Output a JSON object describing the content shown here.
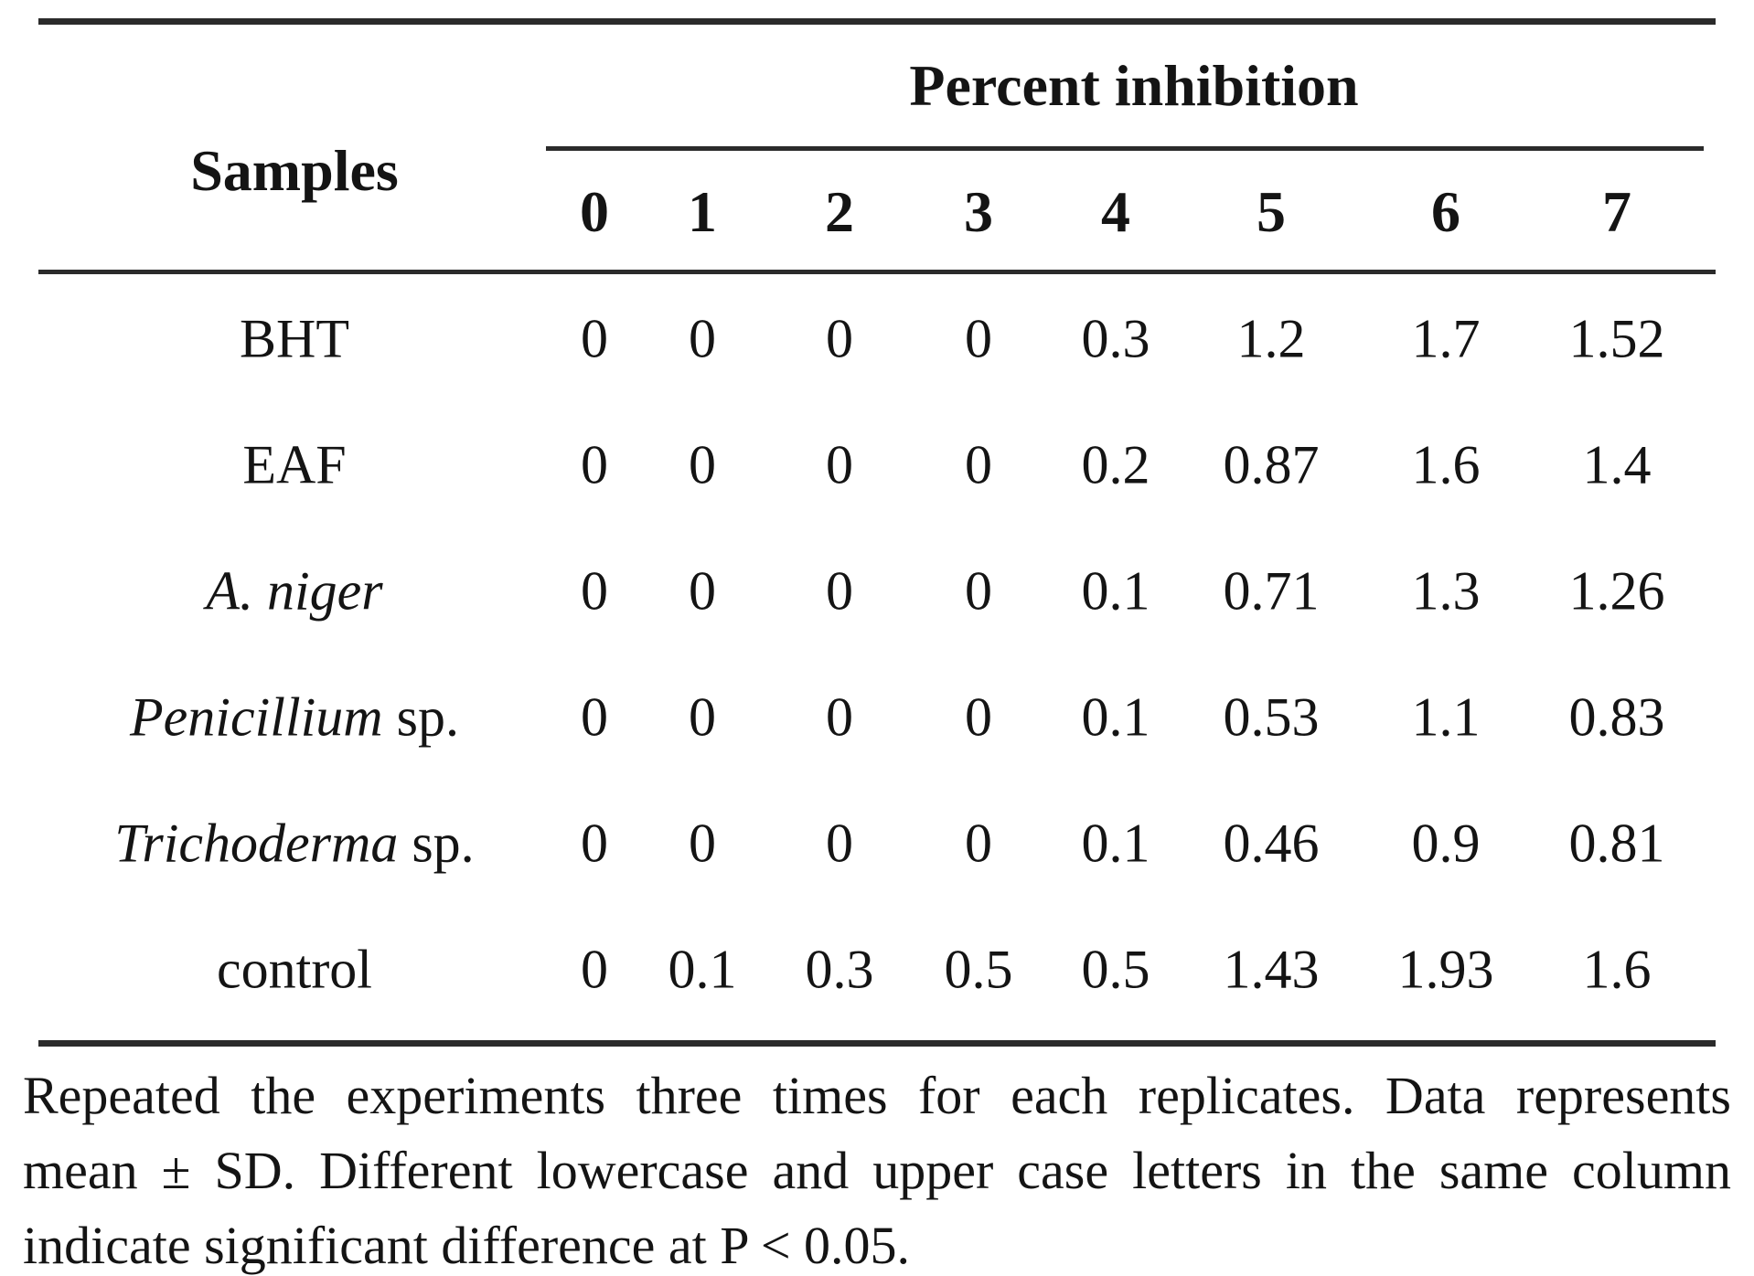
{
  "table": {
    "samples_header": "Samples",
    "group_header": "Percent inhibition",
    "day_headers": [
      "0",
      "1",
      "2",
      "3",
      "4",
      "5",
      "6",
      "7"
    ],
    "rows": [
      {
        "sample_italic": "",
        "sample_regular": "BHT",
        "values": [
          "0",
          "0",
          "0",
          "0",
          "0.3",
          "1.2",
          "1.7",
          "1.52"
        ]
      },
      {
        "sample_italic": "",
        "sample_regular": "EAF",
        "values": [
          "0",
          "0",
          "0",
          "0",
          "0.2",
          "0.87",
          "1.6",
          "1.4"
        ]
      },
      {
        "sample_italic": "A. niger",
        "sample_regular": "",
        "values": [
          "0",
          "0",
          "0",
          "0",
          "0.1",
          "0.71",
          "1.3",
          "1.26"
        ]
      },
      {
        "sample_italic": "Penicillium",
        "sample_regular": " sp.",
        "values": [
          "0",
          "0",
          "0",
          "0",
          "0.1",
          "0.53",
          "1.1",
          "0.83"
        ]
      },
      {
        "sample_italic": "Trichoderma",
        "sample_regular": " sp.",
        "values": [
          "0",
          "0",
          "0",
          "0",
          "0.1",
          "0.46",
          "0.9",
          "0.81"
        ]
      },
      {
        "sample_italic": "",
        "sample_regular": "control",
        "values": [
          "0",
          "0.1",
          "0.3",
          "0.5",
          "0.5",
          "1.43",
          "1.93",
          "1.6"
        ]
      }
    ]
  },
  "footnote": {
    "lines": [
      "Repeated the experiments three times for each replicates. Data represents",
      "mean ± SD. Different lowercase and upper case letters in the same column",
      "indicate significant difference at P < 0.05."
    ]
  },
  "chart_data": {
    "type": "table",
    "title": "Percent inhibition",
    "row_header": "Samples",
    "columns": [
      "0",
      "1",
      "2",
      "3",
      "4",
      "5",
      "6",
      "7"
    ],
    "rows": [
      "BHT",
      "EAF",
      "A. niger",
      "Penicillium sp.",
      "Trichoderma sp.",
      "control"
    ],
    "values": [
      [
        0,
        0,
        0,
        0,
        0.3,
        1.2,
        1.7,
        1.52
      ],
      [
        0,
        0,
        0,
        0,
        0.2,
        0.87,
        1.6,
        1.4
      ],
      [
        0,
        0,
        0,
        0,
        0.1,
        0.71,
        1.3,
        1.26
      ],
      [
        0,
        0,
        0,
        0,
        0.1,
        0.53,
        1.1,
        0.83
      ],
      [
        0,
        0,
        0,
        0,
        0.1,
        0.46,
        0.9,
        0.81
      ],
      [
        0,
        0.1,
        0.3,
        0.5,
        0.5,
        1.43,
        1.93,
        1.6
      ]
    ]
  },
  "colors": {
    "text": "#141414",
    "rule": "#2b2b2b",
    "background": "#ffffff"
  }
}
